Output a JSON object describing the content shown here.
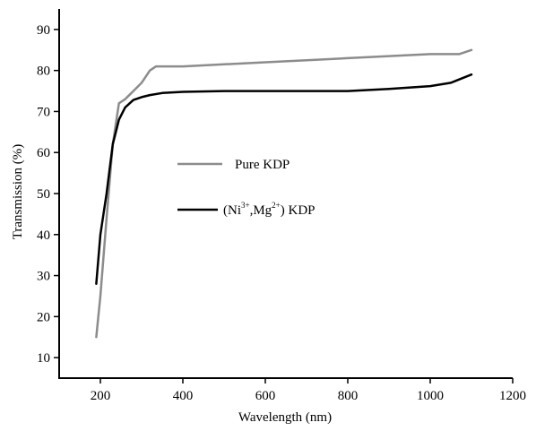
{
  "chart_data": {
    "type": "line",
    "title": "",
    "xlabel": "Wavelength (nm)",
    "ylabel": "Transmission (%)",
    "xlim": [
      100,
      1200
    ],
    "ylim": [
      5,
      95
    ],
    "xticks": [
      200,
      400,
      600,
      800,
      1000,
      1200
    ],
    "yticks": [
      10,
      20,
      30,
      40,
      50,
      60,
      70,
      80,
      90
    ],
    "grid": false,
    "legend_placement": "center",
    "colors": {
      "pure": "#8c8c8c",
      "doped": "#000000",
      "axis": "#000000"
    },
    "series": [
      {
        "name": "Pure KDP",
        "color": "#8c8c8c",
        "x": [
          190,
          200,
          215,
          230,
          245,
          260,
          280,
          300,
          320,
          335,
          400,
          500,
          600,
          700,
          800,
          900,
          1000,
          1070,
          1100
        ],
        "y": [
          15,
          25,
          44,
          62,
          72,
          73,
          75,
          77,
          80,
          81,
          81,
          81.5,
          82,
          82.5,
          83,
          83.5,
          84,
          84,
          85
        ]
      },
      {
        "name": "(Ni3+,Mg2+) KDP",
        "color": "#000000",
        "x": [
          190,
          200,
          215,
          230,
          245,
          260,
          280,
          300,
          320,
          350,
          400,
          500,
          600,
          700,
          800,
          900,
          1000,
          1050,
          1100
        ],
        "y": [
          28,
          40,
          50,
          62,
          68,
          71,
          72.8,
          73.5,
          74,
          74.5,
          74.8,
          75,
          75,
          75,
          75,
          75.5,
          76.2,
          77,
          79
        ]
      }
    ],
    "legend": {
      "pure": {
        "text": "Pure KDP"
      },
      "doped": {
        "open": "(Ni",
        "sup1": "3+",
        "mid": ",Mg",
        "sup2": "2+",
        "close": ") KDP"
      }
    }
  }
}
